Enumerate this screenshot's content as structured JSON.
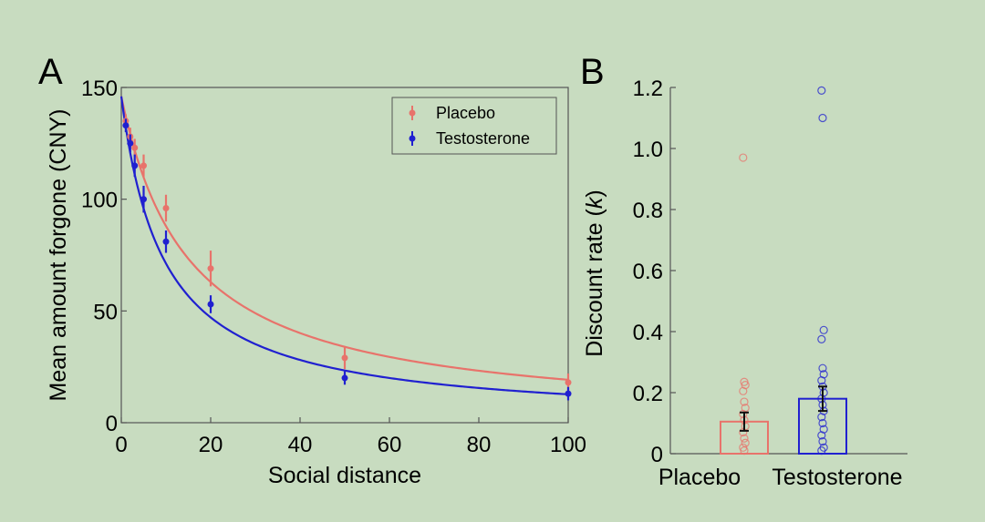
{
  "chart_data": [
    {
      "type": "line",
      "panel_label": "A",
      "xlabel": "Social distance",
      "ylabel": "Mean amount forgone (CNY)",
      "xlim": [
        0,
        100
      ],
      "ylim": [
        0,
        150
      ],
      "xticks": [
        0,
        20,
        40,
        60,
        80,
        100
      ],
      "yticks": [
        0,
        50,
        100,
        150
      ],
      "legend_position": "top-right",
      "x": [
        1,
        2,
        3,
        5,
        10,
        20,
        50,
        100
      ],
      "series": [
        {
          "name": "Placebo",
          "color": "#e8736b",
          "values": [
            135,
            128,
            123,
            115,
            96,
            69,
            29,
            18
          ],
          "errors": [
            3,
            4,
            4,
            5,
            6,
            8,
            5,
            4
          ],
          "fit": {
            "v0": 146,
            "k": 0.066
          }
        },
        {
          "name": "Testosterone",
          "color": "#2020d0",
          "values": [
            133,
            125,
            115,
            100,
            81,
            53,
            20,
            13
          ],
          "errors": [
            3,
            4,
            5,
            6,
            5,
            4,
            3,
            3
          ],
          "fit": {
            "v0": 146,
            "k": 0.105
          }
        }
      ]
    },
    {
      "type": "bar",
      "panel_label": "B",
      "ylabel_prefix": "Discount rate (",
      "ylabel_var": "k",
      "ylabel_suffix": ")",
      "categories": [
        "Placebo",
        "Testosterone"
      ],
      "values": [
        0.105,
        0.18
      ],
      "errors": [
        0.03,
        0.04
      ],
      "ylim": [
        0,
        1.2
      ],
      "yticks": [
        0,
        0.2,
        0.4,
        0.6,
        0.8,
        1.0,
        1.2
      ],
      "ytick_labels": [
        "0",
        "0.2",
        "0.4",
        "0.6",
        "0.8",
        "1.0",
        "1.2"
      ],
      "colors": [
        "#e8736b",
        "#2020d0"
      ],
      "points": [
        [
          0.97,
          0.235,
          0.225,
          0.205,
          0.17,
          0.15,
          0.13,
          0.11,
          0.09,
          0.07,
          0.05,
          0.035,
          0.02,
          0.01
        ],
        [
          1.19,
          1.1,
          0.405,
          0.375,
          0.28,
          0.26,
          0.24,
          0.22,
          0.2,
          0.18,
          0.16,
          0.14,
          0.12,
          0.1,
          0.08,
          0.06,
          0.04,
          0.02,
          0.01
        ]
      ]
    }
  ]
}
